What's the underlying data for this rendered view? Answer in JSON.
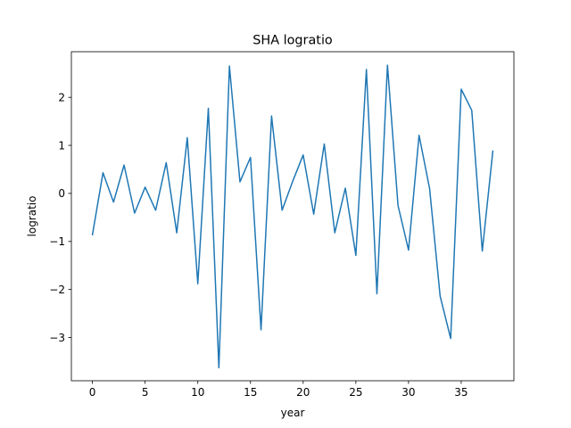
{
  "chart_data": {
    "type": "line",
    "title": "SHA logratio",
    "xlabel": "year",
    "ylabel": "logratio",
    "xlim": [
      -2,
      40
    ],
    "ylim": [
      -3.9,
      2.95
    ],
    "xticks": [
      0,
      5,
      10,
      15,
      20,
      25,
      30,
      35
    ],
    "yticks": [
      -3,
      -2,
      -1,
      0,
      1,
      2
    ],
    "grid": false,
    "line_color": "#1f77b4",
    "series": [
      {
        "x": [
          0,
          1,
          2,
          3,
          4,
          5,
          6,
          7,
          8,
          9,
          10,
          11,
          12,
          13,
          14,
          15,
          16,
          17,
          18,
          19,
          20,
          21,
          22,
          23,
          24,
          25,
          26,
          27,
          28,
          29,
          30,
          31,
          32,
          33,
          34,
          35,
          36,
          37,
          38
        ],
        "values": [
          -0.86,
          0.43,
          -0.18,
          0.59,
          -0.41,
          0.13,
          -0.35,
          0.64,
          -0.82,
          1.16,
          -1.88,
          1.77,
          -3.63,
          2.65,
          0.24,
          0.75,
          -2.84,
          1.61,
          -0.35,
          0.25,
          0.8,
          -0.43,
          1.03,
          -0.82,
          0.11,
          -1.29,
          2.58,
          -2.09,
          2.67,
          -0.25,
          -1.18,
          1.21,
          0.1,
          -2.14,
          -3.02,
          2.17,
          1.73,
          -1.2,
          0.88
        ]
      }
    ]
  }
}
